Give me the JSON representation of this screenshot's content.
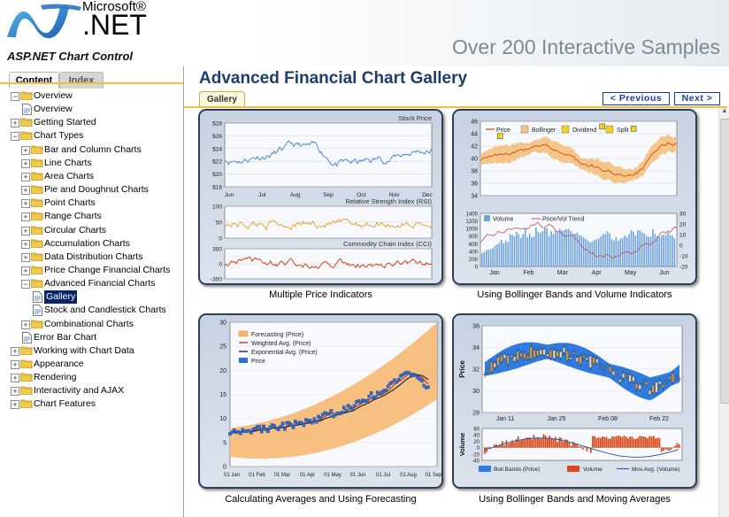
{
  "header": {
    "brand_small": "Microsoft®",
    "brand_large": ".NET",
    "app_title": "ASP.NET Chart Control",
    "tagline": "Over 200 Interactive Samples"
  },
  "sidebar": {
    "tabs": [
      "Content",
      "Index"
    ],
    "tree": [
      {
        "label": "Overview",
        "level": 0,
        "expanded": true,
        "type": "folder"
      },
      {
        "label": "Overview",
        "level": 1,
        "type": "doc"
      },
      {
        "label": "Getting Started",
        "level": 0,
        "expanded": false,
        "type": "folder"
      },
      {
        "label": "Chart Types",
        "level": 0,
        "expanded": true,
        "type": "folder"
      },
      {
        "label": "Bar and Column Charts",
        "level": 1,
        "expanded": false,
        "type": "folder"
      },
      {
        "label": "Line Charts",
        "level": 1,
        "expanded": false,
        "type": "folder"
      },
      {
        "label": "Area Charts",
        "level": 1,
        "expanded": false,
        "type": "folder"
      },
      {
        "label": "Pie and Doughnut Charts",
        "level": 1,
        "expanded": false,
        "type": "folder"
      },
      {
        "label": "Point Charts",
        "level": 1,
        "expanded": false,
        "type": "folder"
      },
      {
        "label": "Range Charts",
        "level": 1,
        "expanded": false,
        "type": "folder"
      },
      {
        "label": "Circular Charts",
        "level": 1,
        "expanded": false,
        "type": "folder"
      },
      {
        "label": "Accumulation Charts",
        "level": 1,
        "expanded": false,
        "type": "folder"
      },
      {
        "label": "Data Distribution Charts",
        "level": 1,
        "expanded": false,
        "type": "folder"
      },
      {
        "label": "Price Change Financial Charts",
        "level": 1,
        "expanded": false,
        "type": "folder"
      },
      {
        "label": "Advanced Financial Charts",
        "level": 1,
        "expanded": true,
        "type": "folder"
      },
      {
        "label": "Gallery",
        "level": 2,
        "type": "doc",
        "selected": true
      },
      {
        "label": "Stock and Candlestick Charts",
        "level": 2,
        "type": "doc"
      },
      {
        "label": "Combinational Charts",
        "level": 1,
        "expanded": false,
        "type": "folder"
      },
      {
        "label": "Error Bar Chart",
        "level": 1,
        "type": "doc"
      },
      {
        "label": "Working with Chart Data",
        "level": 0,
        "expanded": false,
        "type": "folder"
      },
      {
        "label": "Appearance",
        "level": 0,
        "expanded": false,
        "type": "folder"
      },
      {
        "label": "Rendering",
        "level": 0,
        "expanded": false,
        "type": "folder"
      },
      {
        "label": "Interactivity and AJAX",
        "level": 0,
        "expanded": false,
        "type": "folder"
      },
      {
        "label": "Chart Features",
        "level": 0,
        "expanded": false,
        "type": "folder"
      }
    ]
  },
  "main": {
    "title": "Advanced Financial Chart Gallery",
    "gallery_tab": "Gallery",
    "prev_label": "< Previous",
    "next_label": "Next >"
  },
  "charts": [
    {
      "caption": "Multiple Price Indicators",
      "panels": [
        {
          "title": "Stock Price",
          "yticks": [
            "$28",
            "$26",
            "$24",
            "$22",
            "$20",
            "$18"
          ],
          "color": "#3b7fd9"
        },
        {
          "title": "Relative Strength Index (RSI)",
          "yticks": [
            "100",
            "50",
            "0"
          ],
          "color": "#e8a020"
        },
        {
          "title": "Commodity Chain Index (CCI)",
          "yticks": [
            "350",
            "0",
            "-350"
          ],
          "color": "#cc3300"
        }
      ],
      "xticks": [
        "Jun",
        "Jul",
        "Aug",
        "Sep",
        "Oct",
        "Nov",
        "Dec"
      ]
    },
    {
      "caption": "Using Bollinger Bands and Volume Indicators",
      "legend_top": [
        "Price",
        "Bollinger",
        "Dividend",
        "Split"
      ],
      "legend_bottom": [
        "Volume",
        "Price/Vol Trend"
      ],
      "yticks_top": [
        "46",
        "44",
        "42",
        "40",
        "38",
        "36",
        "34"
      ],
      "yticks_bottom_left": [
        "1400",
        "1200",
        "1000",
        "800",
        "600",
        "400",
        "200",
        "0"
      ],
      "yticks_bottom_right": [
        "30",
        "20",
        "10",
        "0",
        "-10",
        "-20"
      ],
      "xticks": [
        "Jan",
        "Feb",
        "Mar",
        "Apr",
        "May",
        "Jun"
      ]
    },
    {
      "caption": "Calculating Averages and Using Forecasting",
      "legend": [
        "Forecasting (Price)",
        "Weighted Avg. (Price)",
        "Exponential Avg. (Price)",
        "Price"
      ],
      "yticks": [
        "30",
        "25",
        "20",
        "15",
        "10",
        "5",
        "0"
      ],
      "xticks": [
        "01 Jan",
        "01 Feb",
        "01 Mar",
        "01 Apr",
        "01 May",
        "01 Jun",
        "01 Jul",
        "01 Aug",
        "01 Sep"
      ]
    },
    {
      "caption": "Using Bollinger Bands and Moving Averages",
      "ylabel_top": "Price",
      "ylabel_bottom": "Volume",
      "yticks_top": [
        "36",
        "34",
        "32",
        "30",
        "28"
      ],
      "yticks_bottom": [
        "60",
        "40",
        "20",
        "0",
        "-20",
        "-40"
      ],
      "xticks": [
        "Jan 11",
        "Jan 25",
        "Feb 08",
        "Feb 22"
      ],
      "legend": [
        "Boll.Bands (Price)",
        "Volume",
        "Mov.Avg. (Volume)"
      ]
    }
  ],
  "colors": {
    "accent": "#f0c040",
    "title": "#1f3d6b",
    "card_border": "#2f3e55"
  }
}
